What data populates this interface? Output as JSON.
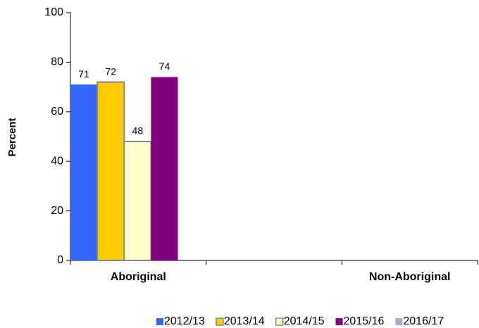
{
  "chart_data": {
    "type": "bar",
    "y_label": "Percent",
    "categories": [
      "Aboriginal",
      null,
      "Non-Aboriginal"
    ],
    "series": [
      {
        "name": "2012/13",
        "color": "#3366ff",
        "values": [
          71,
          null,
          null
        ]
      },
      {
        "name": "2013/14",
        "color": "#ffcc00",
        "values": [
          72,
          null,
          null
        ]
      },
      {
        "name": "2014/15",
        "color": "#ffffcc",
        "values": [
          48,
          null,
          null
        ]
      },
      {
        "name": "2015/16",
        "color": "#800080",
        "values": [
          74,
          null,
          null
        ]
      },
      {
        "name": "2016/17",
        "color": "#b3a7d1",
        "values": [
          null,
          null,
          null
        ]
      }
    ],
    "ylim": [
      0,
      100
    ],
    "yticks": [
      0,
      20,
      40,
      60,
      80,
      100
    ],
    "legend": "bottom"
  }
}
